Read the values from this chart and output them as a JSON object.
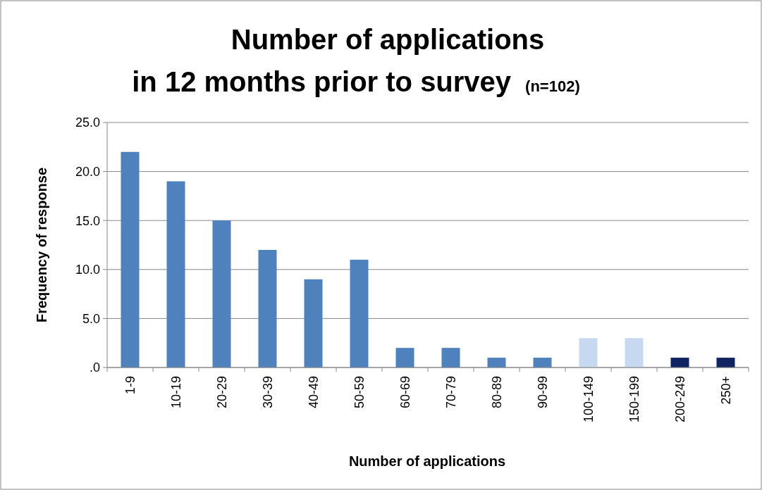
{
  "chart_data": {
    "type": "bar",
    "title": "Number of applications\nin 12 months prior to survey",
    "subtitle": "(n=102)",
    "xlabel": "Number of applications",
    "ylabel": "Frequency of response",
    "categories": [
      "1-9",
      "10-19",
      "20-29",
      "30-39",
      "40-49",
      "50-59",
      "60-69",
      "70-79",
      "80-89",
      "90-99",
      "100-149",
      "150-199",
      "200-249",
      "250+"
    ],
    "values": [
      22,
      19,
      15,
      12,
      9,
      11,
      2,
      2,
      1,
      1,
      3,
      3,
      1,
      1
    ],
    "colors": [
      "#4f81bd",
      "#4f81bd",
      "#4f81bd",
      "#4f81bd",
      "#4f81bd",
      "#4f81bd",
      "#4f81bd",
      "#4f81bd",
      "#4f81bd",
      "#4f81bd",
      "#c6d9f1",
      "#c6d9f1",
      "#0f2460",
      "#0f2460"
    ],
    "ylim": [
      0,
      25
    ],
    "yticks": [
      {
        "value": 0,
        "label": ".0"
      },
      {
        "value": 5,
        "label": "5.0"
      },
      {
        "value": 10,
        "label": "10.0"
      },
      {
        "value": 15,
        "label": "15.0"
      },
      {
        "value": 20,
        "label": "20.0"
      },
      {
        "value": 25,
        "label": "25.0"
      }
    ],
    "grid": "y"
  }
}
